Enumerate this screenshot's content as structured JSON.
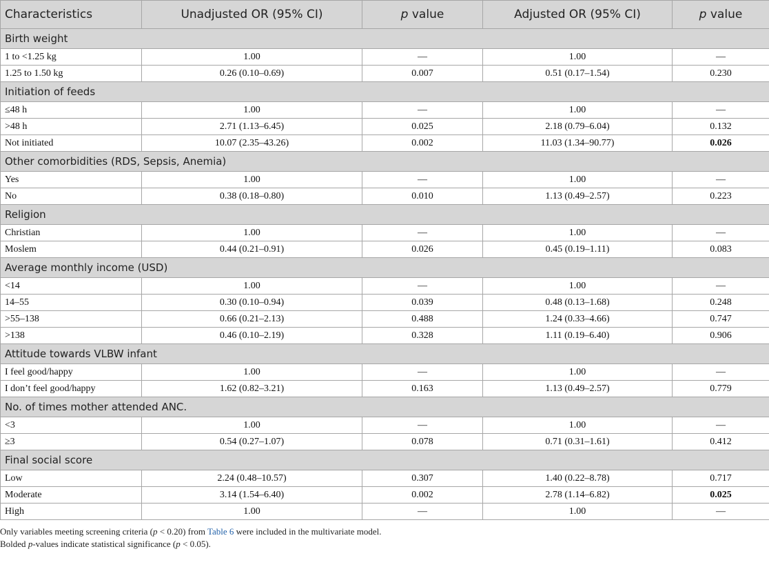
{
  "table": {
    "header": [
      [
        {
          "text": "Characteristics"
        }
      ],
      [
        {
          "text": "Unadjusted OR (95% CI)"
        }
      ],
      [
        {
          "text": "p",
          "italic": true
        },
        {
          "text": " value"
        }
      ],
      [
        {
          "text": "Adjusted OR (95% CI)"
        }
      ],
      [
        {
          "text": "p",
          "italic": true
        },
        {
          "text": " value"
        }
      ]
    ],
    "groups": [
      {
        "title": "Birth weight",
        "rows": [
          [
            "1 to <1.25 kg",
            "1.00",
            "—",
            "1.00",
            "—"
          ],
          [
            "1.25 to 1.50 kg",
            "0.26 (0.10–0.69)",
            "0.007",
            "0.51 (0.17–1.54)",
            "0.230"
          ]
        ]
      },
      {
        "title": "Initiation of feeds",
        "rows": [
          [
            "≤48 h",
            "1.00",
            "—",
            "1.00",
            "—"
          ],
          [
            ">48 h",
            "2.71 (1.13–6.45)",
            "0.025",
            "2.18 (0.79–6.04)",
            "0.132"
          ],
          [
            "Not initiated",
            "10.07 (2.35–43.26)",
            "0.002",
            "11.03 (1.34–90.77)",
            {
              "text": "0.026",
              "bold": true
            }
          ]
        ]
      },
      {
        "title": "Other comorbidities (RDS, Sepsis, Anemia)",
        "rows": [
          [
            "Yes",
            "1.00",
            "—",
            "1.00",
            "—"
          ],
          [
            "No",
            "0.38 (0.18–0.80)",
            "0.010",
            "1.13 (0.49–2.57)",
            "0.223"
          ]
        ]
      },
      {
        "title": "Religion",
        "rows": [
          [
            "Christian",
            "1.00",
            "—",
            "1.00",
            "—"
          ],
          [
            "Moslem",
            "0.44 (0.21–0.91)",
            "0.026",
            "0.45 (0.19–1.11)",
            "0.083"
          ]
        ]
      },
      {
        "title": "Average monthly income (USD)",
        "rows": [
          [
            "<14",
            "1.00",
            "—",
            "1.00",
            "—"
          ],
          [
            "14–55",
            "0.30 (0.10–0.94)",
            "0.039",
            "0.48 (0.13–1.68)",
            "0.248"
          ],
          [
            ">55–138",
            "0.66 (0.21–2.13)",
            "0.488",
            "1.24 (0.33–4.66)",
            "0.747"
          ],
          [
            ">138",
            "0.46 (0.10–2.19)",
            "0.328",
            "1.11 (0.19–6.40)",
            "0.906"
          ]
        ]
      },
      {
        "title": "Attitude towards VLBW infant",
        "rows": [
          [
            "I feel good/happy",
            "1.00",
            "—",
            "1.00",
            "—"
          ],
          [
            "I don’t feel good/happy",
            "1.62 (0.82–3.21)",
            "0.163",
            "1.13 (0.49–2.57)",
            "0.779"
          ]
        ]
      },
      {
        "title": "No. of times mother attended ANC.",
        "rows": [
          [
            "<3",
            "1.00",
            "—",
            "1.00",
            "—"
          ],
          [
            "≥3",
            "0.54 (0.27–1.07)",
            "0.078",
            "0.71 (0.31–1.61)",
            "0.412"
          ]
        ]
      },
      {
        "title": "Final social score",
        "rows": [
          [
            "Low",
            "2.24 (0.48–10.57)",
            "0.307",
            "1.40 (0.22–8.78)",
            "0.717"
          ],
          [
            "Moderate",
            "3.14 (1.54–6.40)",
            "0.002",
            "2.78 (1.14–6.82)",
            {
              "text": "0.025",
              "bold": true
            }
          ],
          [
            "High",
            "1.00",
            "—",
            "1.00",
            "—"
          ]
        ]
      }
    ],
    "footnotes": [
      [
        {
          "text": "Only variables meeting screening criteria ("
        },
        {
          "text": "p",
          "italic": true
        },
        {
          "text": " < 0.20) from "
        },
        {
          "text": "Table 6",
          "link": true
        },
        {
          "text": " were included in the multivariate model."
        }
      ],
      [
        {
          "text": "Bolded "
        },
        {
          "text": "p",
          "italic": true
        },
        {
          "text": "-values indicate statistical significance ("
        },
        {
          "text": "p",
          "italic": true
        },
        {
          "text": " < 0.05)."
        }
      ]
    ]
  }
}
